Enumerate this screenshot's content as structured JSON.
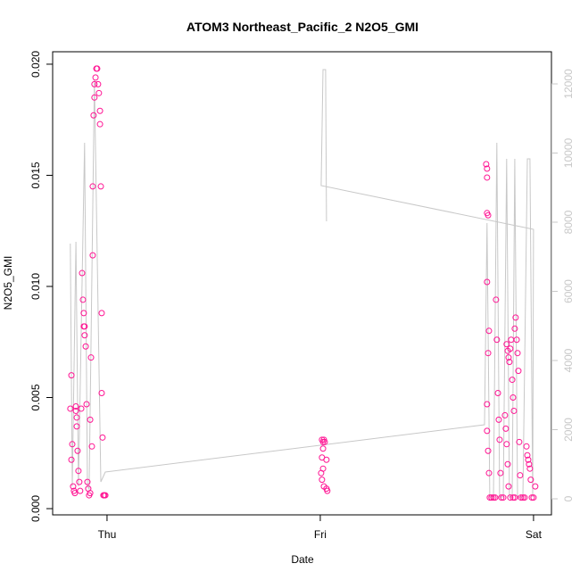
{
  "chart_data": {
    "type": "scatter",
    "title": "ATOM3 Northeast_Pacific_2 N2O5_GMI",
    "x_label": "Date",
    "y_label": "N2O5_GMI",
    "color": "#ff1493",
    "x": [
      -0.167,
      -0.172,
      -0.167,
      -0.163,
      -0.159,
      -0.155,
      -0.151,
      -0.146,
      -0.146,
      -0.142,
      -0.142,
      -0.138,
      -0.134,
      -0.13,
      -0.126,
      -0.121,
      -0.117,
      -0.113,
      -0.109,
      -0.109,
      -0.105,
      -0.105,
      -0.1,
      -0.096,
      -0.092,
      -0.088,
      -0.084,
      -0.079,
      -0.079,
      -0.075,
      -0.071,
      -0.067,
      -0.067,
      -0.063,
      -0.059,
      -0.059,
      -0.054,
      -0.05,
      -0.046,
      -0.042,
      -0.038,
      -0.033,
      -0.033,
      -0.029,
      -0.025,
      -0.025,
      -0.021,
      -0.017,
      -0.013,
      -0.008,
      1.008,
      1.013,
      1.017,
      1.021,
      1.013,
      1.008,
      1.013,
      1.004,
      1.008,
      1.017,
      1.029,
      1.033,
      1.029,
      1.778,
      1.782,
      1.782,
      1.782,
      1.787,
      1.782,
      1.787,
      1.791,
      1.782,
      1.782,
      1.787,
      1.791,
      1.795,
      1.803,
      1.812,
      1.82,
      1.824,
      1.828,
      1.833,
      1.837,
      1.841,
      1.845,
      1.849,
      1.858,
      1.866,
      1.87,
      1.874,
      1.879,
      1.883,
      1.891,
      1.904,
      1.912,
      1.874,
      1.879,
      1.883,
      1.887,
      1.891,
      1.895,
      1.9,
      1.904,
      1.908,
      1.912,
      1.916,
      1.921,
      1.925,
      1.929,
      1.933,
      1.937,
      1.941,
      1.95,
      1.958,
      1.967,
      1.971,
      1.975,
      1.979,
      1.983,
      1.987,
      1.992,
      2.0,
      2.008
    ],
    "values": [
      0.006,
      0.0045,
      0.0022,
      0.0029,
      0.001,
      0.0008,
      0.0007,
      0.0046,
      0.0044,
      0.0041,
      0.0037,
      0.0026,
      0.0017,
      0.0012,
      0.0008,
      0.0045,
      0.0106,
      0.0094,
      0.0088,
      0.0082,
      0.0082,
      0.0078,
      0.0073,
      0.0047,
      0.0012,
      0.0009,
      0.0006,
      0.0007,
      0.004,
      0.0068,
      0.0028,
      0.0114,
      0.0145,
      0.0177,
      0.0185,
      0.0191,
      0.0194,
      0.0198,
      0.0198,
      0.0191,
      0.0187,
      0.0179,
      0.0173,
      0.0145,
      0.0088,
      0.0052,
      0.0032,
      0.0006,
      0.0006,
      0.0006,
      0.0031,
      0.003,
      0.0031,
      0.003,
      0.0027,
      0.0023,
      0.0018,
      0.0016,
      0.0013,
      0.001,
      0.0009,
      0.0008,
      0.0022,
      0.0155,
      0.0153,
      0.0149,
      0.0133,
      0.0132,
      0.0102,
      0.007,
      0.008,
      0.0047,
      0.0035,
      0.0026,
      0.0016,
      0.0005,
      0.0005,
      0.0005,
      0.0005,
      0.0094,
      0.0076,
      0.0052,
      0.004,
      0.0031,
      0.0016,
      0.0005,
      0.0005,
      0.0042,
      0.0036,
      0.0029,
      0.002,
      0.001,
      0.0005,
      0.0005,
      0.0005,
      0.0074,
      0.0071,
      0.0068,
      0.0066,
      0.0072,
      0.0076,
      0.0058,
      0.005,
      0.0044,
      0.0081,
      0.0086,
      0.0076,
      0.007,
      0.0062,
      0.003,
      0.0015,
      0.0005,
      0.0005,
      0.0005,
      0.0028,
      0.0024,
      0.0022,
      0.002,
      0.0018,
      0.0013,
      0.0005,
      0.0005,
      0.001
    ],
    "line": {
      "axis": "y2",
      "color": "#c8c8c8",
      "x": [
        -0.172,
        -0.163,
        -0.146,
        -0.134,
        -0.105,
        -0.092,
        -0.084,
        -0.059,
        -0.029,
        -0.008,
        1.77,
        1.782,
        1.795,
        1.812,
        1.828,
        1.841,
        1.858,
        1.874,
        1.887,
        1.9,
        1.912,
        1.925,
        1.95,
        1.971,
        1.983,
        1.996,
        2.0,
        1.004,
        1.013,
        1.025,
        1.029
      ],
      "values": [
        7380,
        361,
        7432,
        361,
        10297,
        361,
        284,
        12103,
        490,
        774,
        2142,
        7974,
        52,
        52,
        10297,
        52,
        52,
        9832,
        52,
        52,
        9832,
        52,
        52,
        9832,
        9832,
        52,
        7793,
        9058,
        12413,
        12413,
        8026
      ]
    },
    "xlim": [
      -0.255,
      2.084
    ],
    "xticks": [
      {
        "value": 0,
        "label": "Thu"
      },
      {
        "value": 1,
        "label": "Fri"
      },
      {
        "value": 2,
        "label": "Sat"
      }
    ],
    "ylim": [
      -0.00028,
      0.02056
    ],
    "yticks": [
      {
        "value": 0,
        "label": "0.000"
      },
      {
        "value": 0.005,
        "label": "0.005"
      },
      {
        "value": 0.01,
        "label": "0.010"
      },
      {
        "value": 0.015,
        "label": "0.015"
      },
      {
        "value": 0.02,
        "label": "0.020"
      }
    ],
    "y2lim": [
      -464,
      12929
    ],
    "y2ticks": [
      0,
      2000,
      4000,
      6000,
      8000,
      10000,
      12000
    ],
    "y2color": "#c8c8c8"
  }
}
